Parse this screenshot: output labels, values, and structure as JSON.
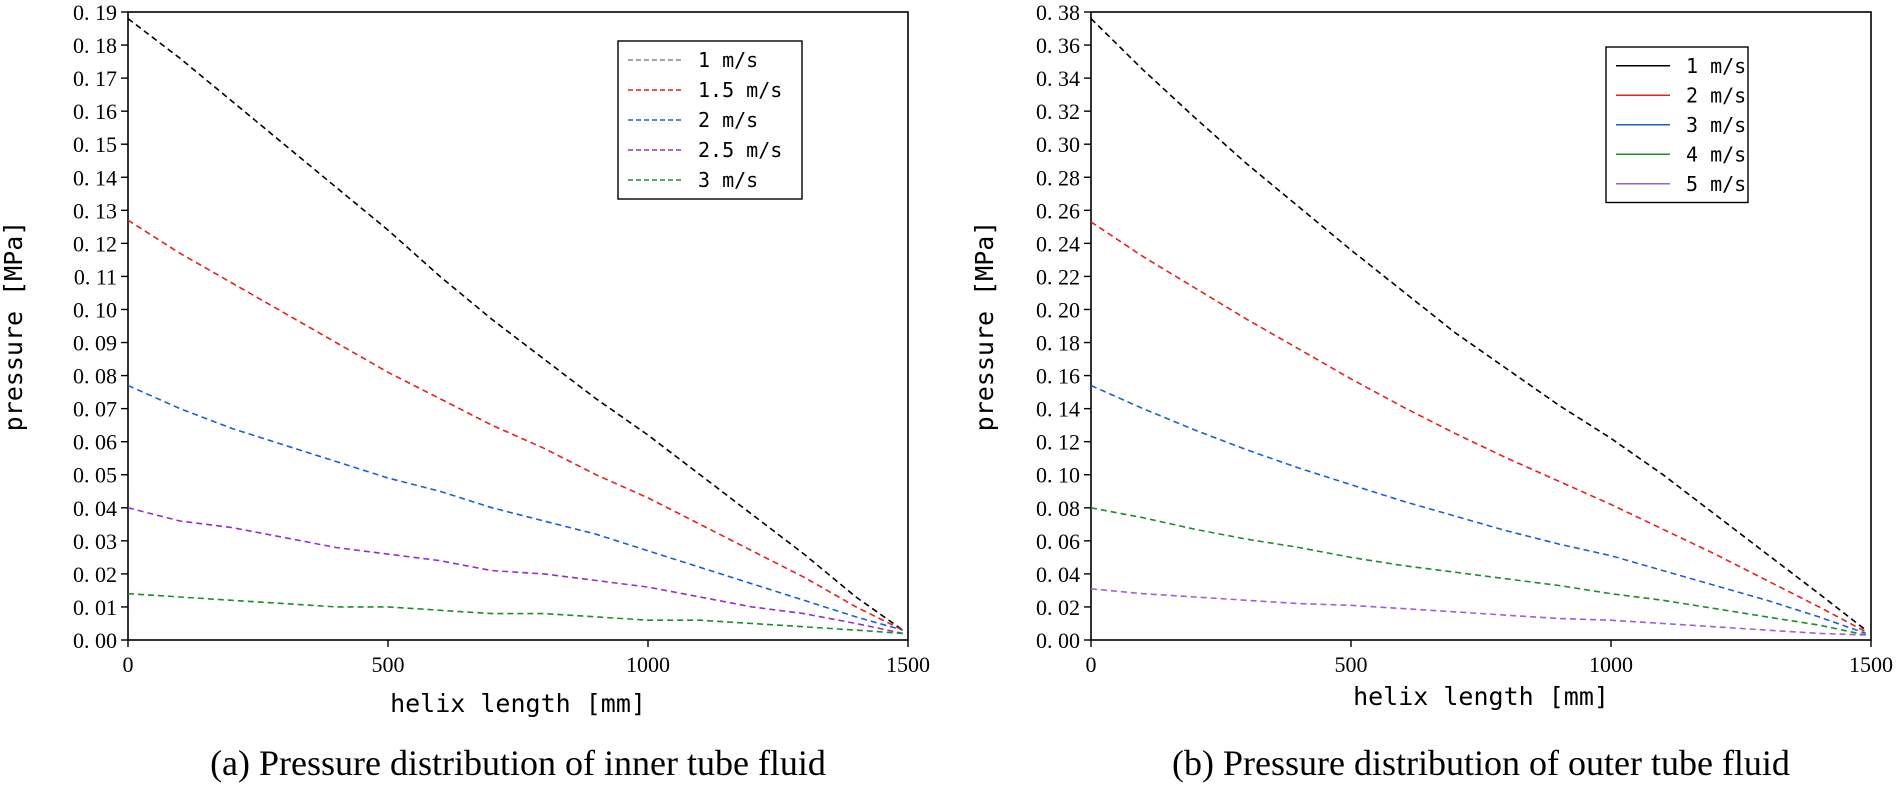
{
  "chart_data": [
    {
      "type": "line",
      "title": "",
      "caption": "(a) Pressure distribution of inner tube fluid",
      "xlabel": "helix length [mm]",
      "ylabel": "pressure [MPa]",
      "xlim": [
        0,
        1500
      ],
      "ylim": [
        0,
        0.19
      ],
      "xticks": [
        0,
        500,
        1000,
        1500
      ],
      "xtick_labels": [
        "0",
        "500",
        "1000",
        "1500"
      ],
      "yticks": [
        0,
        0.01,
        0.02,
        0.03,
        0.04,
        0.05,
        0.06,
        0.07,
        0.08,
        0.09,
        0.1,
        0.11,
        0.12,
        0.13,
        0.14,
        0.15,
        0.16,
        0.17,
        0.18,
        0.19
      ],
      "ytick_labels": [
        "0. 00",
        "0. 01",
        "0. 02",
        "0. 03",
        "0. 04",
        "0. 05",
        "0. 06",
        "0. 07",
        "0. 08",
        "0. 09",
        "0. 10",
        "0. 11",
        "0. 12",
        "0. 13",
        "0. 14",
        "0. 15",
        "0. 16",
        "0. 17",
        "0. 18",
        "0. 19"
      ],
      "line_style": "dashed",
      "legend_position": "top-right",
      "series": [
        {
          "name": "1 m/s",
          "color": "#000000",
          "legend_color": "#888888",
          "x": [
            0,
            100,
            200,
            300,
            400,
            500,
            600,
            700,
            800,
            900,
            1000,
            1100,
            1200,
            1300,
            1400,
            1490
          ],
          "y": [
            0.188,
            0.176,
            0.163,
            0.15,
            0.137,
            0.124,
            0.11,
            0.097,
            0.085,
            0.073,
            0.062,
            0.05,
            0.038,
            0.026,
            0.013,
            0.003
          ]
        },
        {
          "name": "1.5 m/s",
          "color": "#e8211c",
          "x": [
            0,
            100,
            200,
            300,
            400,
            500,
            600,
            700,
            800,
            900,
            1000,
            1100,
            1200,
            1300,
            1400,
            1490
          ],
          "y": [
            0.127,
            0.117,
            0.108,
            0.099,
            0.09,
            0.081,
            0.073,
            0.065,
            0.058,
            0.05,
            0.043,
            0.035,
            0.027,
            0.019,
            0.01,
            0.003
          ]
        },
        {
          "name": "2 m/s",
          "color": "#1a5fd6",
          "x": [
            0,
            100,
            200,
            300,
            400,
            500,
            600,
            700,
            800,
            900,
            1000,
            1100,
            1200,
            1300,
            1400,
            1490
          ],
          "y": [
            0.077,
            0.07,
            0.064,
            0.059,
            0.054,
            0.049,
            0.045,
            0.04,
            0.036,
            0.032,
            0.027,
            0.022,
            0.017,
            0.012,
            0.007,
            0.003
          ]
        },
        {
          "name": "2.5 m/s",
          "color": "#9a2fc8",
          "x": [
            0,
            100,
            200,
            300,
            400,
            500,
            600,
            700,
            800,
            900,
            1000,
            1100,
            1200,
            1300,
            1400,
            1490
          ],
          "y": [
            0.04,
            0.036,
            0.034,
            0.031,
            0.028,
            0.026,
            0.024,
            0.021,
            0.02,
            0.018,
            0.016,
            0.013,
            0.01,
            0.008,
            0.005,
            0.002
          ]
        },
        {
          "name": "3 m/s",
          "color": "#1e8c2e",
          "x": [
            0,
            100,
            200,
            300,
            400,
            500,
            600,
            700,
            800,
            900,
            1000,
            1100,
            1200,
            1300,
            1400,
            1490
          ],
          "y": [
            0.014,
            0.013,
            0.012,
            0.011,
            0.01,
            0.01,
            0.009,
            0.008,
            0.008,
            0.007,
            0.006,
            0.006,
            0.005,
            0.004,
            0.003,
            0.002
          ]
        }
      ]
    },
    {
      "type": "line",
      "title": "",
      "caption": "(b) Pressure distribution of outer tube fluid",
      "xlabel": "helix length [mm]",
      "ylabel": "pressure [MPa]",
      "xlim": [
        0,
        1500
      ],
      "ylim": [
        0,
        0.38
      ],
      "xticks": [
        0,
        500,
        1000,
        1500
      ],
      "xtick_labels": [
        "0",
        "500",
        "1000",
        "1500"
      ],
      "yticks": [
        0,
        0.02,
        0.04,
        0.06,
        0.08,
        0.1,
        0.12,
        0.14,
        0.16,
        0.18,
        0.2,
        0.22,
        0.24,
        0.26,
        0.28,
        0.3,
        0.32,
        0.34,
        0.36,
        0.38
      ],
      "ytick_labels": [
        "0. 00",
        "0. 02",
        "0. 04",
        "0. 06",
        "0. 08",
        "0. 10",
        "0. 12",
        "0. 14",
        "0. 16",
        "0. 18",
        "0. 20",
        "0. 22",
        "0. 24",
        "0. 26",
        "0. 28",
        "0. 30",
        "0. 32",
        "0. 34",
        "0. 36",
        "0. 38"
      ],
      "line_style": "dashed",
      "legend_position": "top-right",
      "series": [
        {
          "name": "1 m/s",
          "color": "#000000",
          "x": [
            0,
            100,
            200,
            300,
            400,
            500,
            600,
            700,
            800,
            900,
            1000,
            1100,
            1200,
            1300,
            1400,
            1490
          ],
          "y": [
            0.376,
            0.345,
            0.316,
            0.288,
            0.262,
            0.236,
            0.211,
            0.186,
            0.164,
            0.142,
            0.122,
            0.1,
            0.076,
            0.052,
            0.028,
            0.006
          ]
        },
        {
          "name": "2 m/s",
          "color": "#e8211c",
          "x": [
            0,
            100,
            200,
            300,
            400,
            500,
            600,
            700,
            800,
            900,
            1000,
            1100,
            1200,
            1300,
            1400,
            1490
          ],
          "y": [
            0.253,
            0.232,
            0.213,
            0.194,
            0.176,
            0.158,
            0.141,
            0.125,
            0.11,
            0.096,
            0.082,
            0.067,
            0.052,
            0.036,
            0.02,
            0.005
          ]
        },
        {
          "name": "3 m/s",
          "color": "#1a5fd6",
          "x": [
            0,
            100,
            200,
            300,
            400,
            500,
            600,
            700,
            800,
            900,
            1000,
            1100,
            1200,
            1300,
            1400,
            1490
          ],
          "y": [
            0.154,
            0.14,
            0.127,
            0.115,
            0.104,
            0.094,
            0.084,
            0.075,
            0.066,
            0.058,
            0.051,
            0.042,
            0.033,
            0.024,
            0.014,
            0.004
          ]
        },
        {
          "name": "4 m/s",
          "color": "#1e8c2e",
          "x": [
            0,
            100,
            200,
            300,
            400,
            500,
            600,
            700,
            800,
            900,
            1000,
            1100,
            1200,
            1300,
            1400,
            1490
          ],
          "y": [
            0.08,
            0.074,
            0.067,
            0.061,
            0.056,
            0.05,
            0.045,
            0.041,
            0.037,
            0.033,
            0.028,
            0.024,
            0.019,
            0.014,
            0.009,
            0.003
          ]
        },
        {
          "name": "5 m/s",
          "color": "#9b5fe0",
          "x": [
            0,
            100,
            200,
            300,
            400,
            500,
            600,
            700,
            800,
            900,
            1000,
            1100,
            1200,
            1300,
            1400,
            1490
          ],
          "y": [
            0.031,
            0.028,
            0.026,
            0.024,
            0.022,
            0.021,
            0.019,
            0.017,
            0.015,
            0.013,
            0.012,
            0.01,
            0.008,
            0.006,
            0.004,
            0.003
          ]
        }
      ]
    }
  ]
}
